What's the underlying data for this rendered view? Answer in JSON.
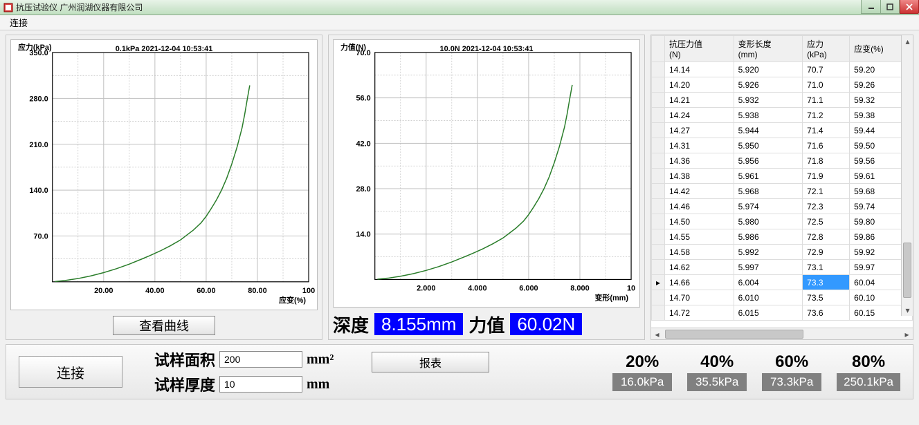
{
  "window": {
    "title": "抗压试验仪 广州润湖仪器有限公司"
  },
  "menu": {
    "connect": "连接"
  },
  "chart1": {
    "type": "line",
    "title_left": "应力(kPa)",
    "overlay": "0.1kPa 2021-12-04 10:53:41",
    "x_label": "应变(%)",
    "xlim": [
      0,
      100
    ],
    "ylim": [
      0,
      350
    ],
    "xticks": [
      20,
      40,
      60,
      80,
      100
    ],
    "yticks": [
      70,
      140,
      210,
      280,
      350
    ],
    "yticks_labels": [
      "70.0",
      "140.0",
      "210.0",
      "280.0",
      "350.0"
    ],
    "xticks_labels": [
      "20.00",
      "40.00",
      "60.00",
      "80.00",
      "100"
    ],
    "grid_major_x": [
      10,
      20,
      30,
      40,
      50,
      60,
      70,
      80,
      90,
      100
    ],
    "grid_major_y": [
      35,
      70,
      105,
      140,
      175,
      210,
      245,
      280,
      315,
      350
    ],
    "line_color": "#2a7d2a",
    "grid_color": "#bfbfbf",
    "minor_dash": "2,2",
    "data": [
      [
        1,
        0.4
      ],
      [
        5,
        2
      ],
      [
        10,
        5
      ],
      [
        15,
        9
      ],
      [
        20,
        14
      ],
      [
        25,
        20
      ],
      [
        30,
        27
      ],
      [
        35,
        35
      ],
      [
        38,
        40
      ],
      [
        42,
        47
      ],
      [
        46,
        55
      ],
      [
        50,
        64
      ],
      [
        52,
        70
      ],
      [
        55,
        79
      ],
      [
        58,
        90
      ],
      [
        60,
        100
      ],
      [
        62,
        112
      ],
      [
        64,
        125
      ],
      [
        66,
        140
      ],
      [
        68,
        158
      ],
      [
        70,
        180
      ],
      [
        72,
        205
      ],
      [
        74,
        235
      ],
      [
        75,
        255
      ],
      [
        76,
        278
      ],
      [
        77,
        300
      ]
    ],
    "button": "查看曲线"
  },
  "chart2": {
    "type": "line",
    "title_left": "力值(N)",
    "overlay": "10.0N 2021-12-04 10:53:41",
    "x_label": "变形(mm)",
    "xlim": [
      0,
      10
    ],
    "ylim": [
      0,
      70
    ],
    "xticks": [
      2,
      4,
      6,
      8,
      10
    ],
    "yticks": [
      14,
      28,
      42,
      56,
      70
    ],
    "yticks_labels": [
      "14.0",
      "28.0",
      "42.0",
      "56.0",
      "70.0"
    ],
    "xticks_labels": [
      "2.000",
      "4.000",
      "6.000",
      "8.000",
      "10"
    ],
    "grid_major_x": [
      1,
      2,
      3,
      4,
      5,
      6,
      7,
      8,
      9,
      10
    ],
    "grid_major_y": [
      7,
      14,
      21,
      28,
      35,
      42,
      49,
      56,
      63,
      70
    ],
    "line_color": "#2a7d2a",
    "grid_color": "#bfbfbf",
    "data": [
      [
        0.1,
        0.08
      ],
      [
        0.5,
        0.4
      ],
      [
        1.0,
        1.0
      ],
      [
        1.5,
        1.8
      ],
      [
        2.0,
        2.8
      ],
      [
        2.5,
        4.0
      ],
      [
        3.0,
        5.4
      ],
      [
        3.5,
        7.0
      ],
      [
        3.8,
        8.0
      ],
      [
        4.2,
        9.4
      ],
      [
        4.6,
        11.0
      ],
      [
        5.0,
        12.8
      ],
      [
        5.2,
        14.0
      ],
      [
        5.5,
        15.8
      ],
      [
        5.8,
        18.0
      ],
      [
        6.0,
        20.0
      ],
      [
        6.2,
        22.4
      ],
      [
        6.4,
        25.0
      ],
      [
        6.6,
        28.0
      ],
      [
        6.8,
        31.6
      ],
      [
        7.0,
        36.0
      ],
      [
        7.2,
        41.0
      ],
      [
        7.4,
        47.0
      ],
      [
        7.5,
        51.0
      ],
      [
        7.6,
        55.6
      ],
      [
        7.7,
        60.0
      ]
    ],
    "depth_label": "深度",
    "depth_value": "8.155mm",
    "force_label": "力值",
    "force_value": "60.02N"
  },
  "table": {
    "columns": [
      "抗压力值(N)",
      "变形长度(mm)",
      "应力(kPa)",
      "应变(%)"
    ],
    "rows": [
      [
        "14.14",
        "5.920",
        "70.7",
        "59.20"
      ],
      [
        "14.20",
        "5.926",
        "71.0",
        "59.26"
      ],
      [
        "14.21",
        "5.932",
        "71.1",
        "59.32"
      ],
      [
        "14.24",
        "5.938",
        "71.2",
        "59.38"
      ],
      [
        "14.27",
        "5.944",
        "71.4",
        "59.44"
      ],
      [
        "14.31",
        "5.950",
        "71.6",
        "59.50"
      ],
      [
        "14.36",
        "5.956",
        "71.8",
        "59.56"
      ],
      [
        "14.38",
        "5.961",
        "71.9",
        "59.61"
      ],
      [
        "14.42",
        "5.968",
        "72.1",
        "59.68"
      ],
      [
        "14.46",
        "5.974",
        "72.3",
        "59.74"
      ],
      [
        "14.50",
        "5.980",
        "72.5",
        "59.80"
      ],
      [
        "14.55",
        "5.986",
        "72.8",
        "59.86"
      ],
      [
        "14.58",
        "5.992",
        "72.9",
        "59.92"
      ],
      [
        "14.62",
        "5.997",
        "73.1",
        "59.97"
      ],
      [
        "14.66",
        "6.004",
        "73.3",
        "60.04"
      ],
      [
        "14.70",
        "6.010",
        "73.5",
        "60.10"
      ],
      [
        "14.72",
        "6.015",
        "73.6",
        "60.15"
      ]
    ],
    "selected_row": 14,
    "selected_col": 2
  },
  "bottom": {
    "connect": "连接",
    "area_label": "试样面积",
    "area_value": "200",
    "area_unit": "mm²",
    "thick_label": "试样厚度",
    "thick_value": "10",
    "thick_unit": "mm",
    "report": "报表",
    "pcts": [
      {
        "p": "20%",
        "v": "16.0kPa"
      },
      {
        "p": "40%",
        "v": "35.5kPa"
      },
      {
        "p": "60%",
        "v": "73.3kPa"
      },
      {
        "p": "80%",
        "v": "250.1kPa"
      }
    ]
  }
}
